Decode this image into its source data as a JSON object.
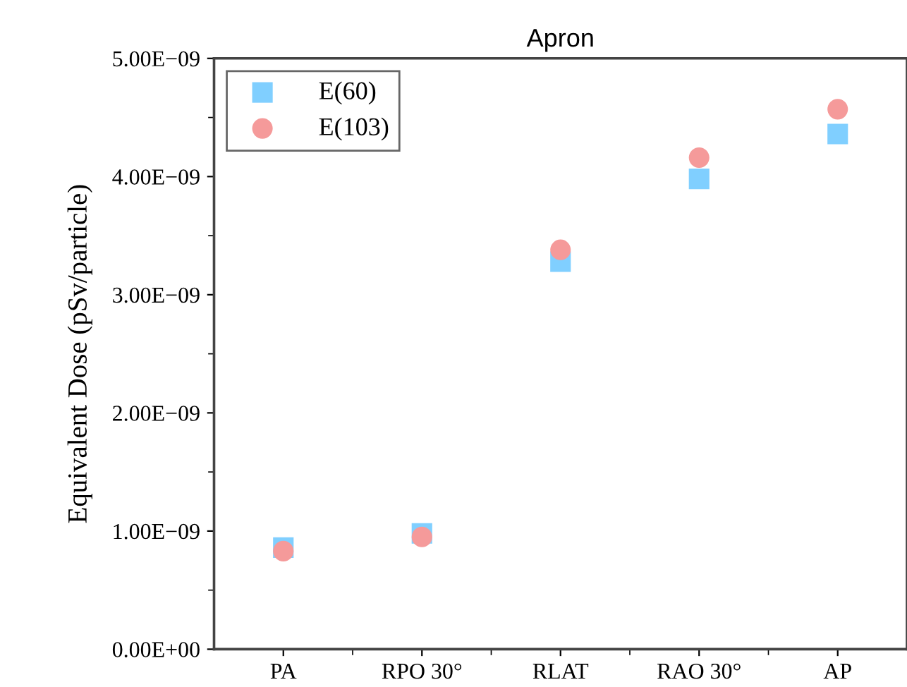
{
  "chart_data": {
    "type": "scatter",
    "title": "Apron",
    "ylabel": "Equivalent Dose (pSv/particle)",
    "categories": [
      "PA",
      "RPO 30°",
      "RLAT",
      "RAO 30°",
      "AP"
    ],
    "series": [
      {
        "name": "E(60)",
        "color": "#80cfff",
        "marker": "square",
        "values": [
          8.6e-10,
          9.8e-10,
          3.28e-09,
          3.98e-09,
          4.36e-09
        ]
      },
      {
        "name": "E(103)",
        "color": "#f59a9a",
        "marker": "circle",
        "values": [
          8.3e-10,
          9.5e-10,
          3.38e-09,
          4.16e-09,
          4.57e-09
        ]
      }
    ],
    "ylim": [
      0,
      5e-09
    ],
    "yticks": [
      {
        "value": 0,
        "label": "0.00E+00"
      },
      {
        "value": 1e-09,
        "label": "1.00E−09"
      },
      {
        "value": 2e-09,
        "label": "2.00E−09"
      },
      {
        "value": 3e-09,
        "label": "3.00E−09"
      },
      {
        "value": 4e-09,
        "label": "4.00E−09"
      },
      {
        "value": 5e-09,
        "label": "5.00E−09"
      }
    ],
    "legend": "top left",
    "grid": false
  }
}
